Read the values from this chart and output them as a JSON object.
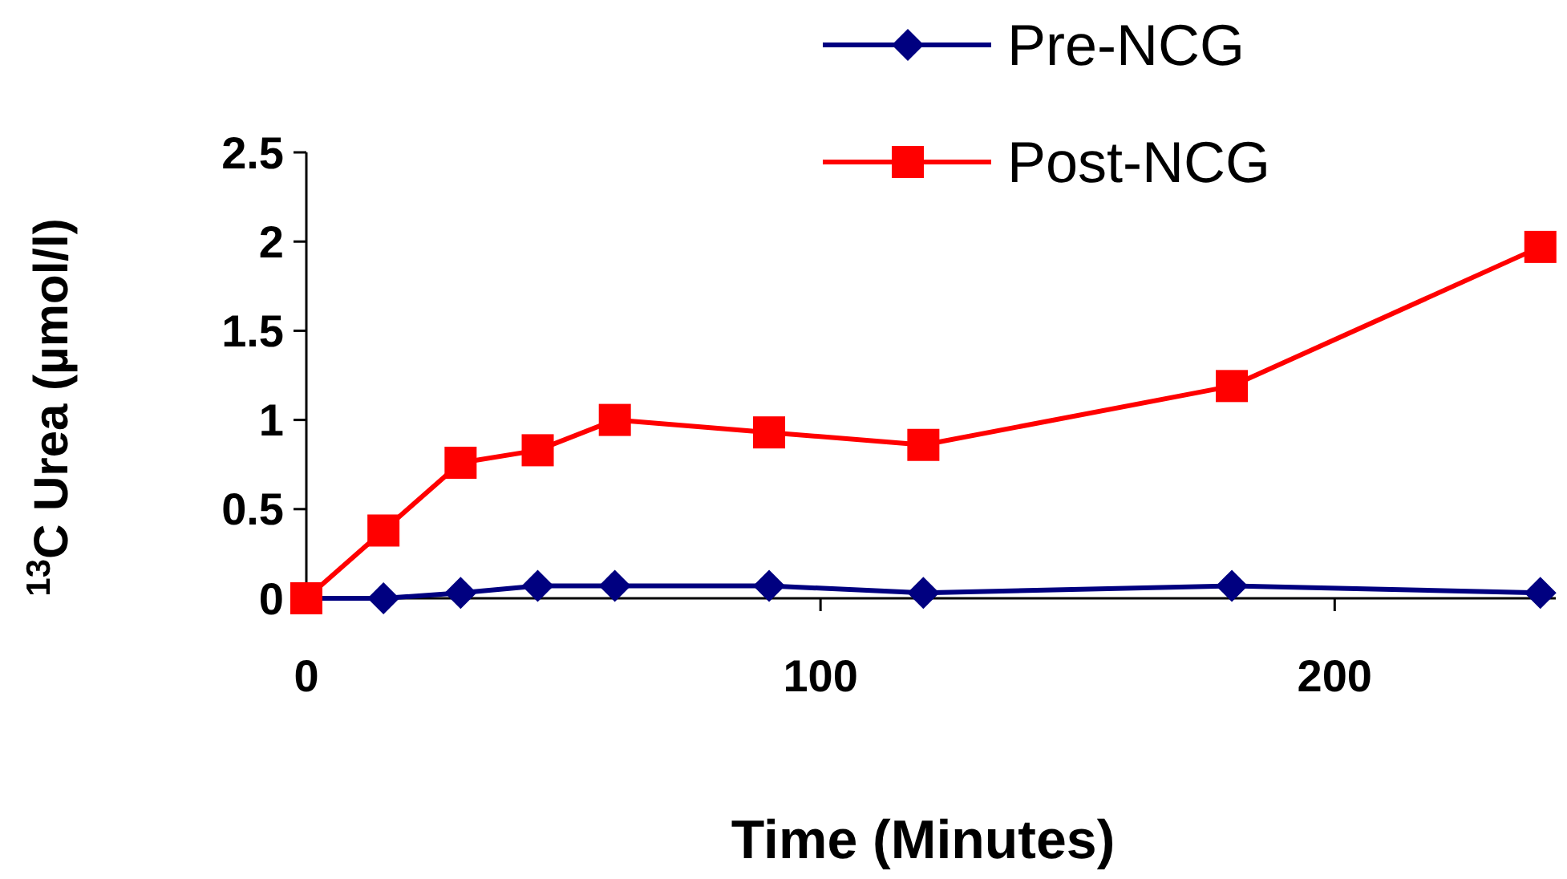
{
  "chart_data": {
    "type": "line",
    "xlabel": "Time (Minutes)",
    "ylabel": "$^{13}$C Urea (µmol/l)",
    "x": [
      0,
      15,
      30,
      45,
      60,
      90,
      120,
      180,
      240
    ],
    "series": [
      {
        "name": "Pre-NCG",
        "color": "#000080",
        "marker": "diamond",
        "values": [
          0,
          0,
          0.03,
          0.07,
          0.07,
          0.07,
          0.03,
          0.07,
          0.03
        ]
      },
      {
        "name": "Post-NCG",
        "color": "#ff0000",
        "marker": "square",
        "values": [
          0,
          0.38,
          0.76,
          0.83,
          1.0,
          0.93,
          0.86,
          1.19,
          1.97
        ]
      }
    ],
    "xlim": [
      0,
      243
    ],
    "xticks": [
      0,
      100,
      200
    ],
    "ylim": [
      0,
      2.5
    ],
    "yticks": [
      0,
      0.5,
      1,
      1.5,
      2,
      2.5
    ],
    "grid": false,
    "legend": "top right"
  }
}
